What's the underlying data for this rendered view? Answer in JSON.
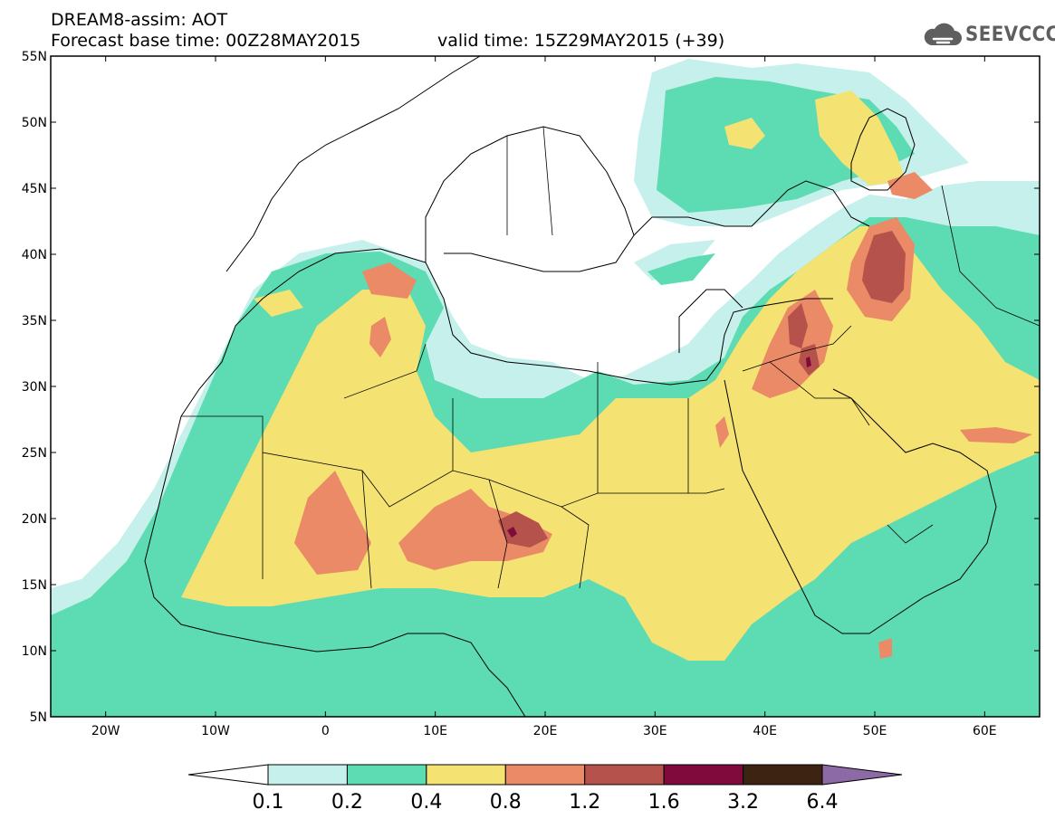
{
  "header": {
    "title": "DREAM8-assim: AOT",
    "base_time": "Forecast base time: 00Z28MAY2015",
    "valid_time": "valid time: 15Z29MAY2015 (+39)"
  },
  "logo": {
    "text": "SEEVCCC",
    "icon": "cloud-icon"
  },
  "map": {
    "lon_range": [
      -25,
      65
    ],
    "lat_range": [
      5,
      55
    ],
    "lat_ticks": [
      "55N",
      "50N",
      "45N",
      "40N",
      "35N",
      "30N",
      "25N",
      "20N",
      "15N",
      "10N",
      "5N"
    ],
    "lon_ticks": [
      "20W",
      "10W",
      "0",
      "10E",
      "20E",
      "30E",
      "40E",
      "50E",
      "60E"
    ],
    "background_color": "#ffffff"
  },
  "colorbar": {
    "levels": [
      "0.1",
      "0.2",
      "0.4",
      "0.8",
      "1.2",
      "1.6",
      "3.2",
      "6.4"
    ],
    "colors": [
      "#c6f0eb",
      "#5ddbb2",
      "#f4e272",
      "#eb8a66",
      "#b5524b",
      "#7f0a3b",
      "#3d2412",
      "#8b6aa6"
    ],
    "under_color": "#ffffff"
  }
}
